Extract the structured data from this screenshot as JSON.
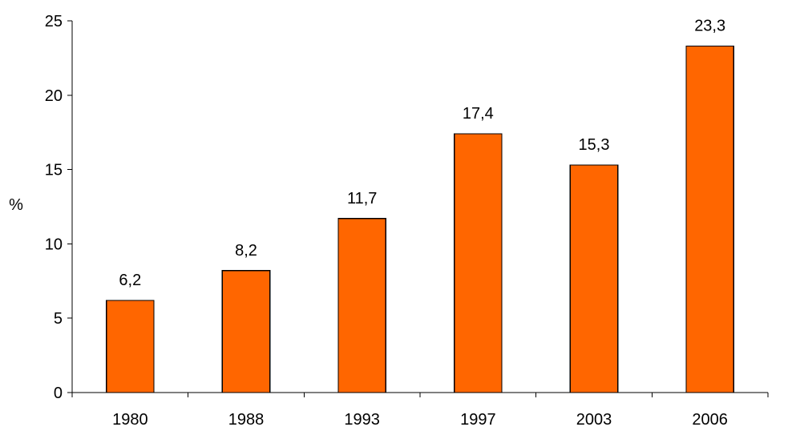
{
  "chart_data": {
    "type": "bar",
    "title": "",
    "xlabel": "",
    "ylabel": "%",
    "categories": [
      "1980",
      "1988",
      "1993",
      "1997",
      "2003",
      "2006"
    ],
    "values": [
      6.2,
      8.2,
      11.7,
      17.4,
      15.3,
      23.3
    ],
    "value_labels": [
      "6,2",
      "8,2",
      "11,7",
      "17,4",
      "15,3",
      "23,3"
    ],
    "ylim": [
      0,
      25
    ],
    "yticks": [
      0,
      5,
      10,
      15,
      20,
      25
    ],
    "ytick_labels": [
      "0",
      "5",
      "10",
      "15",
      "20",
      "25"
    ],
    "grid": false,
    "legend": "none",
    "bar_color": "#FF6600",
    "bar_edge_color": "#000000"
  }
}
